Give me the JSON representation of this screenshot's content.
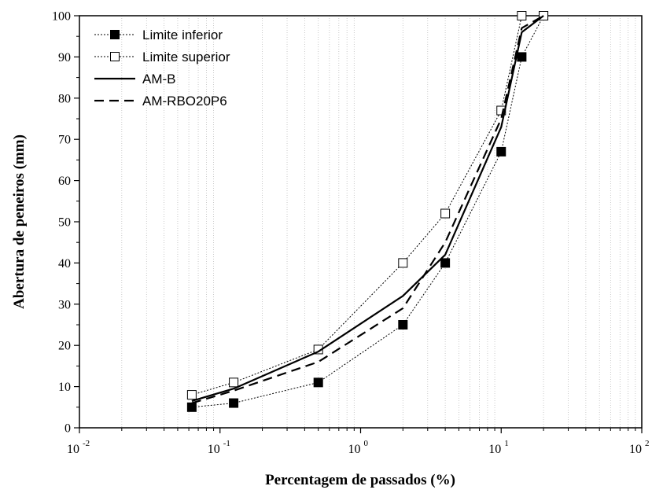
{
  "chart_data": {
    "type": "line",
    "xlabel": "Percentagem de passados (%)",
    "ylabel": "Abertura de peneiros (mm)",
    "x_scale": "log",
    "xlim": [
      0.01,
      100
    ],
    "ylim": [
      0,
      100
    ],
    "x_ticks": [
      {
        "base": "10",
        "exp": "-2",
        "value": 0.01
      },
      {
        "base": "10",
        "exp": "-1",
        "value": 0.1
      },
      {
        "base": "10",
        "exp": "0",
        "value": 1
      },
      {
        "base": "10",
        "exp": "1",
        "value": 10
      },
      {
        "base": "10",
        "exp": "2",
        "value": 100
      }
    ],
    "y_ticks": [
      0,
      10,
      20,
      30,
      40,
      50,
      60,
      70,
      80,
      90,
      100
    ],
    "grid": "x-minor-vertical",
    "legend_position": "top-left",
    "series": [
      {
        "name": "Limite inferior",
        "style": "dotted-filled-square",
        "x": [
          0.063,
          0.125,
          0.5,
          2,
          4,
          10,
          14,
          20
        ],
        "y": [
          5,
          6,
          11,
          25,
          40,
          67,
          90,
          100
        ]
      },
      {
        "name": "Limite superior",
        "style": "dotted-open-square",
        "x": [
          0.063,
          0.125,
          0.5,
          2,
          4,
          10,
          14,
          20
        ],
        "y": [
          8,
          11,
          19,
          40,
          52,
          77,
          100,
          100
        ]
      },
      {
        "name": "AM-B",
        "style": "solid",
        "x": [
          0.063,
          0.125,
          0.5,
          2,
          4,
          10,
          14,
          20
        ],
        "y": [
          6.5,
          9.5,
          18.5,
          32,
          42,
          73,
          96,
          100
        ]
      },
      {
        "name": "AM-RBO20P6",
        "style": "dashed",
        "x": [
          0.063,
          0.125,
          0.5,
          2,
          4,
          10,
          14,
          20
        ],
        "y": [
          6,
          9,
          16,
          29,
          45,
          75,
          97,
          100
        ]
      }
    ]
  }
}
